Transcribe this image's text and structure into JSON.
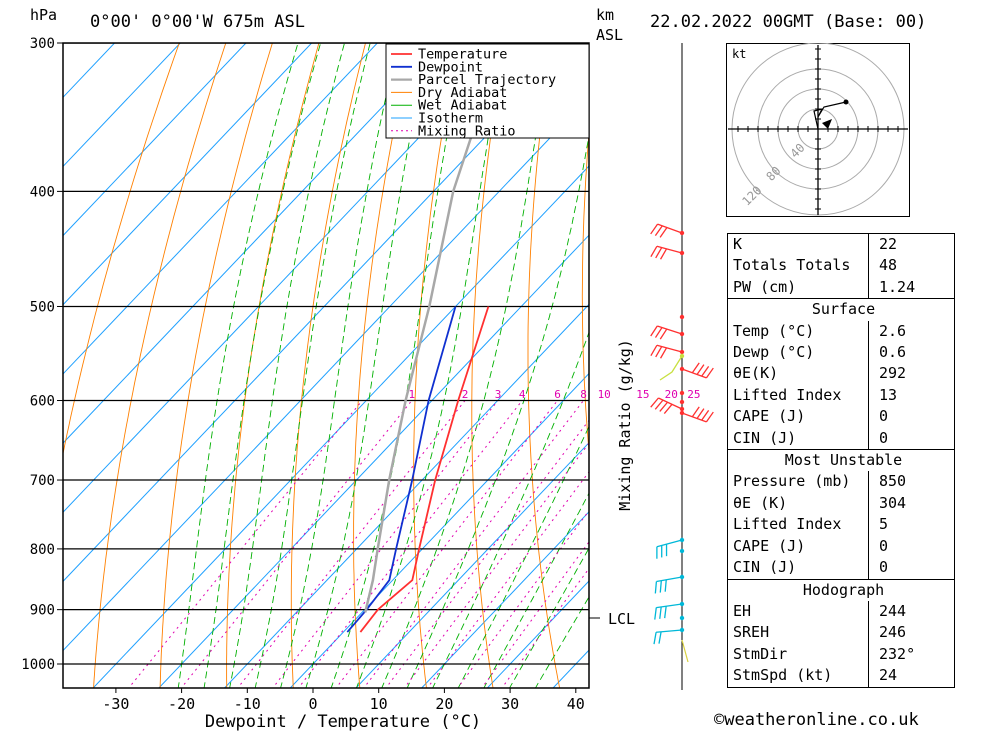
{
  "header": {
    "units_hpa": "hPa",
    "location": "0°00' 0°00'W 675m ASL",
    "units_km": "km",
    "units_asl": "ASL",
    "datetime": "22.02.2022 00GMT (Base: 00)"
  },
  "chart_data": {
    "type": "line",
    "xlabel": "Dewpoint / Temperature (°C)",
    "ylabel": "hPa",
    "right_axis_label": "Mixing Ratio (g/kg)",
    "pressure_ticks": [
      300,
      400,
      500,
      600,
      700,
      800,
      900,
      1000
    ],
    "temperature_ticks": [
      -30,
      -20,
      -10,
      0,
      10,
      20,
      30,
      40
    ],
    "temperature_range": [
      -40,
      40
    ],
    "pressure_range": [
      300,
      1050
    ],
    "mixing_ratio_labels": [
      "1",
      "2",
      "3",
      "4",
      "6",
      "8",
      "10",
      "15",
      "20",
      "25"
    ],
    "lcl_label": "LCL",
    "lcl_pressure": 905,
    "legend": [
      "Temperature",
      "Dewpoint",
      "Parcel Trajectory",
      "Dry Adiabat",
      "Wet Adiabat",
      "Isotherm",
      "Mixing Ratio"
    ],
    "colors": {
      "temperature": "#ff3030",
      "dewpoint": "#1030d0",
      "parcel": "#a8a8a8",
      "dry_adiabat": "#ff8000",
      "wet_adiabat": "#00b000",
      "isotherm": "#1ea0ff",
      "mixing_ratio": "#e000b0"
    },
    "series": [
      {
        "name": "Temperature",
        "points": [
          [
            940,
            2.6
          ],
          [
            900,
            2.0
          ],
          [
            850,
            3.0
          ],
          [
            800,
            -0.5
          ],
          [
            700,
            -8.0
          ],
          [
            600,
            -16.0
          ],
          [
            500,
            -25.0
          ]
        ]
      },
      {
        "name": "Dewpoint",
        "points": [
          [
            940,
            0.6
          ],
          [
            900,
            0.3
          ],
          [
            850,
            -0.5
          ],
          [
            800,
            -4.0
          ],
          [
            700,
            -11.5
          ],
          [
            600,
            -20.5
          ],
          [
            500,
            -30.0
          ]
        ]
      },
      {
        "name": "Parcel Trajectory",
        "points": [
          [
            905,
            0.5
          ],
          [
            850,
            -3.0
          ],
          [
            800,
            -6.8
          ],
          [
            700,
            -15.0
          ],
          [
            600,
            -24.0
          ],
          [
            500,
            -34.0
          ],
          [
            400,
            -47.0
          ],
          [
            300,
            -61.0
          ]
        ]
      }
    ]
  },
  "hodograph": {
    "units": "kt",
    "ring_labels": [
      "40",
      "80",
      "120"
    ]
  },
  "indices": [
    {
      "label": "K",
      "value": "22"
    },
    {
      "label": "Totals Totals",
      "value": "48"
    },
    {
      "label": "PW (cm)",
      "value": "1.24"
    },
    {
      "header": "Surface"
    },
    {
      "label": "Temp (°C)",
      "value": "2.6"
    },
    {
      "label": "Dewp (°C)",
      "value": "0.6"
    },
    {
      "label": "θE(K)",
      "value": "292"
    },
    {
      "label": "Lifted Index",
      "value": "13"
    },
    {
      "label": "CAPE (J)",
      "value": "0"
    },
    {
      "label": "CIN (J)",
      "value": "0"
    },
    {
      "header": "Most Unstable"
    },
    {
      "label": "Pressure (mb)",
      "value": "850"
    },
    {
      "label": "θE (K)",
      "value": "304"
    },
    {
      "label": "Lifted Index",
      "value": "5"
    },
    {
      "label": "CAPE (J)",
      "value": "0"
    },
    {
      "label": "CIN (J)",
      "value": "0"
    },
    {
      "header": "Hodograph"
    },
    {
      "label": "EH",
      "value": "244"
    },
    {
      "label": "SREH",
      "value": "246"
    },
    {
      "label": "StmDir",
      "value": "232°"
    },
    {
      "label": "StmSpd (kt)",
      "value": "24"
    }
  ],
  "footer": {
    "copyright": "©weatheronline.co.uk"
  }
}
